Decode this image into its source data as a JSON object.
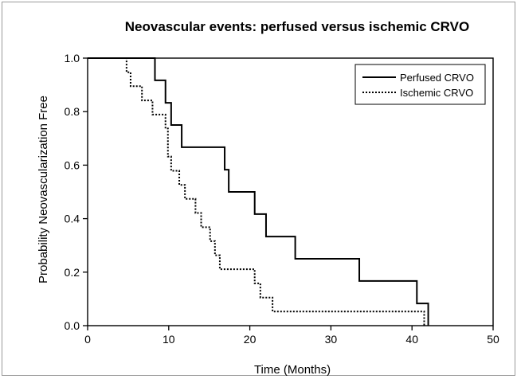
{
  "chart_data": {
    "type": "line",
    "step": true,
    "title": "Neovascular events: perfused versus ischemic CRVO",
    "xlabel": "Time (Months)",
    "ylabel": "Probability Neovascularization Free",
    "xlim": [
      0,
      50
    ],
    "ylim": [
      0,
      1.0
    ],
    "xticks": [
      0,
      10,
      20,
      30,
      40,
      50
    ],
    "yticks": [
      0.0,
      0.2,
      0.4,
      0.6,
      0.8,
      1.0
    ],
    "xtick_labels": [
      "0",
      "10",
      "20",
      "30",
      "40",
      "50"
    ],
    "ytick_labels": [
      "0.0",
      "0.2",
      "0.4",
      "0.6",
      "0.8",
      "1.0"
    ],
    "grid": false,
    "legend_position": "top-right",
    "series": [
      {
        "name": "Perfused CRVO",
        "style": "solid",
        "color": "#000000",
        "x": [
          0,
          8.3,
          9.6,
          10.3,
          11.6,
          16.9,
          17.4,
          20.6,
          22.0,
          25.6,
          33.5,
          40.6,
          42.0
        ],
        "y": [
          1.0,
          0.917,
          0.833,
          0.75,
          0.667,
          0.583,
          0.5,
          0.417,
          0.333,
          0.25,
          0.167,
          0.083,
          0.0
        ]
      },
      {
        "name": "Ischemic CRVO",
        "style": "dotted",
        "color": "#000000",
        "x": [
          0,
          4.8,
          5.3,
          6.7,
          8.0,
          9.6,
          9.9,
          10.3,
          11.3,
          12.0,
          13.3,
          14.0,
          15.1,
          15.7,
          16.3,
          20.6,
          21.3,
          22.0,
          22.8,
          41.5
        ],
        "y": [
          1.0,
          0.947,
          0.895,
          0.842,
          0.789,
          0.737,
          0.632,
          0.579,
          0.526,
          0.474,
          0.421,
          0.368,
          0.316,
          0.263,
          0.211,
          0.158,
          0.105,
          0.105,
          0.053,
          0.0
        ]
      }
    ]
  }
}
